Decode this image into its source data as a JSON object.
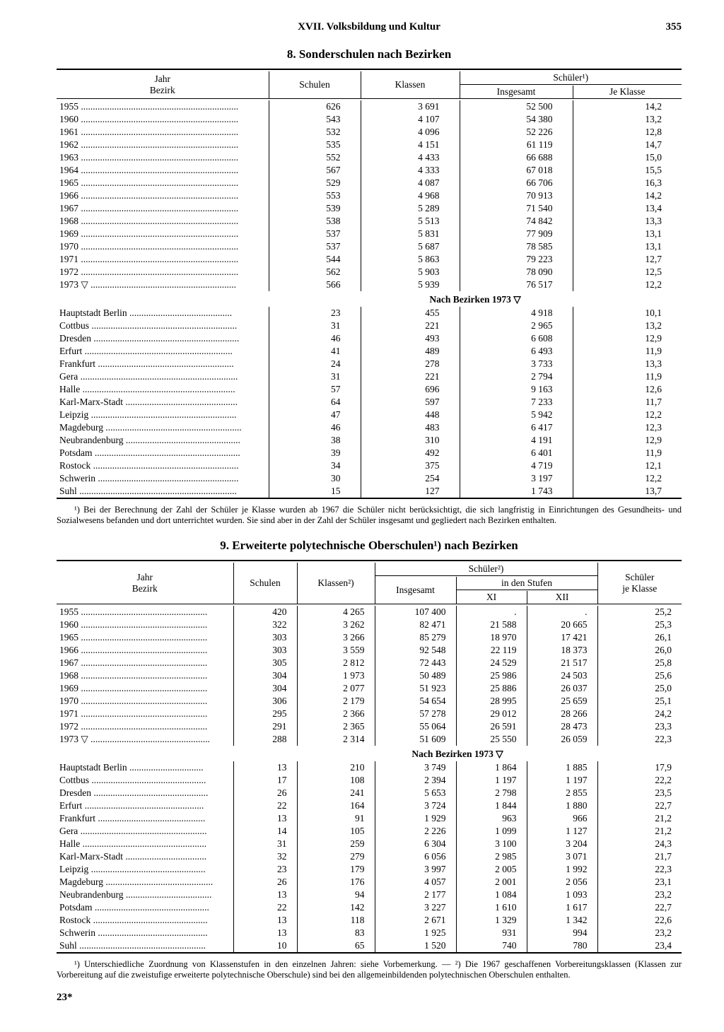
{
  "page": {
    "chapter": "XVII. Volksbildung und Kultur",
    "number": "355",
    "signature": "23*"
  },
  "table8": {
    "title": "8. Sonderschulen nach Bezirken",
    "headers": {
      "col0": "Jahr\nBezirk",
      "col1": "Schulen",
      "col2": "Klassen",
      "sch": "Schüler¹)",
      "col3": "Insgesamt",
      "col4": "Je Klasse"
    },
    "mid_label": "Nach Bezirken 1973 ▽",
    "years": [
      {
        "l": "1955",
        "a": "626",
        "b": "3 691",
        "c": "52 500",
        "d": "14,2"
      },
      {
        "l": "1960",
        "a": "543",
        "b": "4 107",
        "c": "54 380",
        "d": "13,2"
      },
      {
        "l": "1961",
        "a": "532",
        "b": "4 096",
        "c": "52 226",
        "d": "12,8"
      },
      {
        "l": "1962",
        "a": "535",
        "b": "4 151",
        "c": "61 119",
        "d": "14,7"
      },
      {
        "l": "1963",
        "a": "552",
        "b": "4 433",
        "c": "66 688",
        "d": "15,0"
      },
      {
        "l": "1964",
        "a": "567",
        "b": "4 333",
        "c": "67 018",
        "d": "15,5"
      },
      {
        "l": "1965",
        "a": "529",
        "b": "4 087",
        "c": "66 706",
        "d": "16,3"
      },
      {
        "l": "1966",
        "a": "553",
        "b": "4 968",
        "c": "70 913",
        "d": "14,2"
      },
      {
        "l": "1967",
        "a": "539",
        "b": "5 289",
        "c": "71 540",
        "d": "13,4"
      },
      {
        "l": "1968",
        "a": "538",
        "b": "5 513",
        "c": "74 842",
        "d": "13,3"
      },
      {
        "l": "1969",
        "a": "537",
        "b": "5 831",
        "c": "77 909",
        "d": "13,1"
      },
      {
        "l": "1970",
        "a": "537",
        "b": "5 687",
        "c": "78 585",
        "d": "13,1"
      },
      {
        "l": "1971",
        "a": "544",
        "b": "5 863",
        "c": "79 223",
        "d": "12,7"
      },
      {
        "l": "1972",
        "a": "562",
        "b": "5 903",
        "c": "78 090",
        "d": "12,5"
      },
      {
        "l": "1973  ▽",
        "a": "566",
        "b": "5 939",
        "c": "76 517",
        "d": "12,2"
      }
    ],
    "bezirke": [
      {
        "l": "Hauptstadt Berlin",
        "a": "23",
        "b": "455",
        "c": "4 918",
        "d": "10,1"
      },
      {
        "l": "Cottbus",
        "a": "31",
        "b": "221",
        "c": "2 965",
        "d": "13,2"
      },
      {
        "l": "Dresden",
        "a": "46",
        "b": "493",
        "c": "6 608",
        "d": "12,9"
      },
      {
        "l": "Erfurt",
        "a": "41",
        "b": "489",
        "c": "6 493",
        "d": "11,9"
      },
      {
        "l": "Frankfurt",
        "a": "24",
        "b": "278",
        "c": "3 733",
        "d": "13,3"
      },
      {
        "l": "Gera",
        "a": "31",
        "b": "221",
        "c": "2 794",
        "d": "11,9"
      },
      {
        "l": "Halle",
        "a": "57",
        "b": "696",
        "c": "9 163",
        "d": "12,6"
      },
      {
        "l": "Karl-Marx-Stadt",
        "a": "64",
        "b": "597",
        "c": "7 233",
        "d": "11,7"
      },
      {
        "l": "Leipzig",
        "a": "47",
        "b": "448",
        "c": "5 942",
        "d": "12,2"
      },
      {
        "l": "Magdeburg",
        "a": "46",
        "b": "483",
        "c": "6 417",
        "d": "12,3"
      },
      {
        "l": "Neubrandenburg",
        "a": "38",
        "b": "310",
        "c": "4 191",
        "d": "12,9"
      },
      {
        "l": "Potsdam",
        "a": "39",
        "b": "492",
        "c": "6 401",
        "d": "11,9"
      },
      {
        "l": "Rostock",
        "a": "34",
        "b": "375",
        "c": "4 719",
        "d": "12,1"
      },
      {
        "l": "Schwerin",
        "a": "30",
        "b": "254",
        "c": "3 197",
        "d": "12,2"
      },
      {
        "l": "Suhl",
        "a": "15",
        "b": "127",
        "c": "1 743",
        "d": "13,7"
      }
    ],
    "footnote": "¹) Bei der Berechnung der Zahl der Schüler je Klasse wurden ab 1967 die Schüler nicht berücksichtigt, die sich langfristig in Einrichtungen des Gesundheits- und Sozialwesens befanden und dort unterrichtet wurden. Sie sind aber in der Zahl der Schüler insgesamt und gegliedert nach Bezirken enthalten."
  },
  "table9": {
    "title": "9. Erweiterte polytechnische Oberschulen¹) nach Bezirken",
    "headers": {
      "col0": "Jahr\nBezirk",
      "col1": "Schulen",
      "col2": "Klassen²)",
      "sch": "Schüler²)",
      "col3": "Insgesamt",
      "stuf": "in den Stufen",
      "col4": "XI",
      "col5": "XII",
      "col6": "Schüler\nje Klasse"
    },
    "mid_label": "Nach Bezirken 1973 ▽",
    "years": [
      {
        "l": "1955",
        "a": "420",
        "b": "4 265",
        "c": "107 400",
        "d": ".",
        "e": ".",
        "f": "25,2"
      },
      {
        "l": "1960",
        "a": "322",
        "b": "3 262",
        "c": "82 471",
        "d": "21 588",
        "e": "20 665",
        "f": "25,3"
      },
      {
        "l": "1965",
        "a": "303",
        "b": "3 266",
        "c": "85 279",
        "d": "18 970",
        "e": "17 421",
        "f": "26,1"
      },
      {
        "l": "1966",
        "a": "303",
        "b": "3 559",
        "c": "92 548",
        "d": "22 119",
        "e": "18 373",
        "f": "26,0"
      },
      {
        "l": "1967",
        "a": "305",
        "b": "2 812",
        "c": "72 443",
        "d": "24 529",
        "e": "21 517",
        "f": "25,8"
      },
      {
        "l": "1968",
        "a": "304",
        "b": "1 973",
        "c": "50 489",
        "d": "25 986",
        "e": "24 503",
        "f": "25,6"
      },
      {
        "l": "1969",
        "a": "304",
        "b": "2 077",
        "c": "51 923",
        "d": "25 886",
        "e": "26 037",
        "f": "25,0"
      },
      {
        "l": "1970",
        "a": "306",
        "b": "2 179",
        "c": "54 654",
        "d": "28 995",
        "e": "25 659",
        "f": "25,1"
      },
      {
        "l": "1971",
        "a": "295",
        "b": "2 366",
        "c": "57 278",
        "d": "29 012",
        "e": "28 266",
        "f": "24,2"
      },
      {
        "l": "1972",
        "a": "291",
        "b": "2 365",
        "c": "55 064",
        "d": "26 591",
        "e": "28 473",
        "f": "23,3"
      },
      {
        "l": "1973 ▽",
        "a": "288",
        "b": "2 314",
        "c": "51 609",
        "d": "25 550",
        "e": "26 059",
        "f": "22,3"
      }
    ],
    "bezirke": [
      {
        "l": "Hauptstadt Berlin",
        "a": "13",
        "b": "210",
        "c": "3 749",
        "d": "1 864",
        "e": "1 885",
        "f": "17,9"
      },
      {
        "l": "Cottbus",
        "a": "17",
        "b": "108",
        "c": "2 394",
        "d": "1 197",
        "e": "1 197",
        "f": "22,2"
      },
      {
        "l": "Dresden",
        "a": "26",
        "b": "241",
        "c": "5 653",
        "d": "2 798",
        "e": "2 855",
        "f": "23,5"
      },
      {
        "l": "Erfurt",
        "a": "22",
        "b": "164",
        "c": "3 724",
        "d": "1 844",
        "e": "1 880",
        "f": "22,7"
      },
      {
        "l": "Frankfurt",
        "a": "13",
        "b": "91",
        "c": "1 929",
        "d": "963",
        "e": "966",
        "f": "21,2"
      },
      {
        "l": "Gera",
        "a": "14",
        "b": "105",
        "c": "2 226",
        "d": "1 099",
        "e": "1 127",
        "f": "21,2"
      },
      {
        "l": "Halle",
        "a": "31",
        "b": "259",
        "c": "6 304",
        "d": "3 100",
        "e": "3 204",
        "f": "24,3"
      },
      {
        "l": "Karl-Marx-Stadt",
        "a": "32",
        "b": "279",
        "c": "6 056",
        "d": "2 985",
        "e": "3 071",
        "f": "21,7"
      },
      {
        "l": "Leipzig",
        "a": "23",
        "b": "179",
        "c": "3 997",
        "d": "2 005",
        "e": "1 992",
        "f": "22,3"
      },
      {
        "l": "Magdeburg",
        "a": "26",
        "b": "176",
        "c": "4 057",
        "d": "2 001",
        "e": "2 056",
        "f": "23,1"
      },
      {
        "l": "Neubrandenburg",
        "a": "13",
        "b": "94",
        "c": "2 177",
        "d": "1 084",
        "e": "1 093",
        "f": "23,2"
      },
      {
        "l": "Potsdam",
        "a": "22",
        "b": "142",
        "c": "3 227",
        "d": "1 610",
        "e": "1 617",
        "f": "22,7"
      },
      {
        "l": "Rostock",
        "a": "13",
        "b": "118",
        "c": "2 671",
        "d": "1 329",
        "e": "1 342",
        "f": "22,6"
      },
      {
        "l": "Schwerin",
        "a": "13",
        "b": "83",
        "c": "1 925",
        "d": "931",
        "e": "994",
        "f": "23,2"
      },
      {
        "l": "Suhl",
        "a": "10",
        "b": "65",
        "c": "1 520",
        "d": "740",
        "e": "780",
        "f": "23,4"
      }
    ],
    "footnote": "¹) Unterschiedliche Zuordnung von Klassenstufen in den einzelnen Jahren: siehe Vorbemerkung. — ²) Die 1967 geschaffenen Vorbereitungsklassen (Klassen zur Vorbereitung auf die zweistufige erweiterte polytechnische Oberschule) sind bei den allgemeinbildenden polytechnischen Oberschulen enthalten."
  },
  "style": {
    "label_width_t8": 300,
    "label_width_t9": 250,
    "text_color": "#000000",
    "bg_color": "#ffffff"
  }
}
